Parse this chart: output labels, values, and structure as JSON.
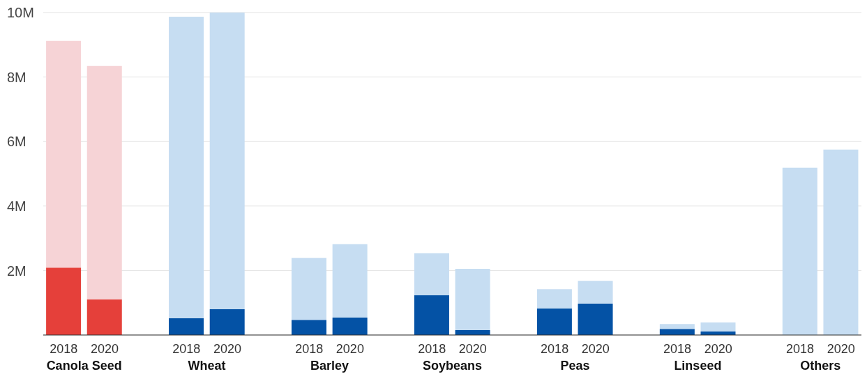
{
  "chart_data": {
    "type": "bar",
    "stacked": true,
    "categories": [
      "2018",
      "2020",
      null,
      "2018",
      "2020",
      null,
      "2018",
      "2020",
      null,
      "2018",
      "2020",
      null,
      "2018",
      "2020",
      null,
      "2018",
      "2020",
      null,
      "2018",
      "2020"
    ],
    "annotations": [
      "Canola Seed",
      "Wheat",
      "Barley",
      "Soybeans",
      "Peas",
      "Linseed",
      "Others"
    ],
    "series": [
      {
        "values": [
          2.09,
          1.1,
          null,
          0.52,
          0.8,
          null,
          0.47,
          0.54,
          null,
          1.23,
          0.15,
          null,
          0.82,
          0.97,
          null,
          0.19,
          0.11,
          null,
          0,
          0
        ],
        "colors": [
          "#e5403a",
          "#e5403a",
          null,
          "#0452a5",
          "#0452a5",
          null,
          "#0452a5",
          "#0452a5",
          null,
          "#0452a5",
          "#0452a5",
          null,
          "#0452a5",
          "#0452a5",
          null,
          "#0452a5",
          "#0452a5",
          null,
          "#0452a5",
          "#0452a5"
        ]
      },
      {
        "values": [
          7.03,
          7.24,
          null,
          9.35,
          9.22,
          null,
          1.92,
          2.28,
          null,
          1.31,
          1.9,
          null,
          0.6,
          0.71,
          null,
          0.15,
          0.28,
          null,
          5.19,
          5.75
        ],
        "colors": [
          "#f6d3d6",
          "#f6d3d6",
          null,
          "#c6ddf2",
          "#c6ddf2",
          null,
          "#c6ddf2",
          "#c6ddf2",
          null,
          "#c6ddf2",
          "#c6ddf2",
          null,
          "#c6ddf2",
          "#c6ddf2",
          null,
          "#c6ddf2",
          "#c6ddf2",
          null,
          "#c6ddf2",
          "#c6ddf2"
        ]
      }
    ],
    "ylim": [
      0,
      10
    ],
    "yticks": [
      {
        "value": 0,
        "label": null
      },
      {
        "value": 2,
        "label": "2M"
      },
      {
        "value": 4,
        "label": "4M"
      },
      {
        "value": 6,
        "label": "6M"
      },
      {
        "value": 8,
        "label": "8M"
      },
      {
        "value": 10,
        "label": "10M"
      }
    ],
    "grid": "y"
  }
}
